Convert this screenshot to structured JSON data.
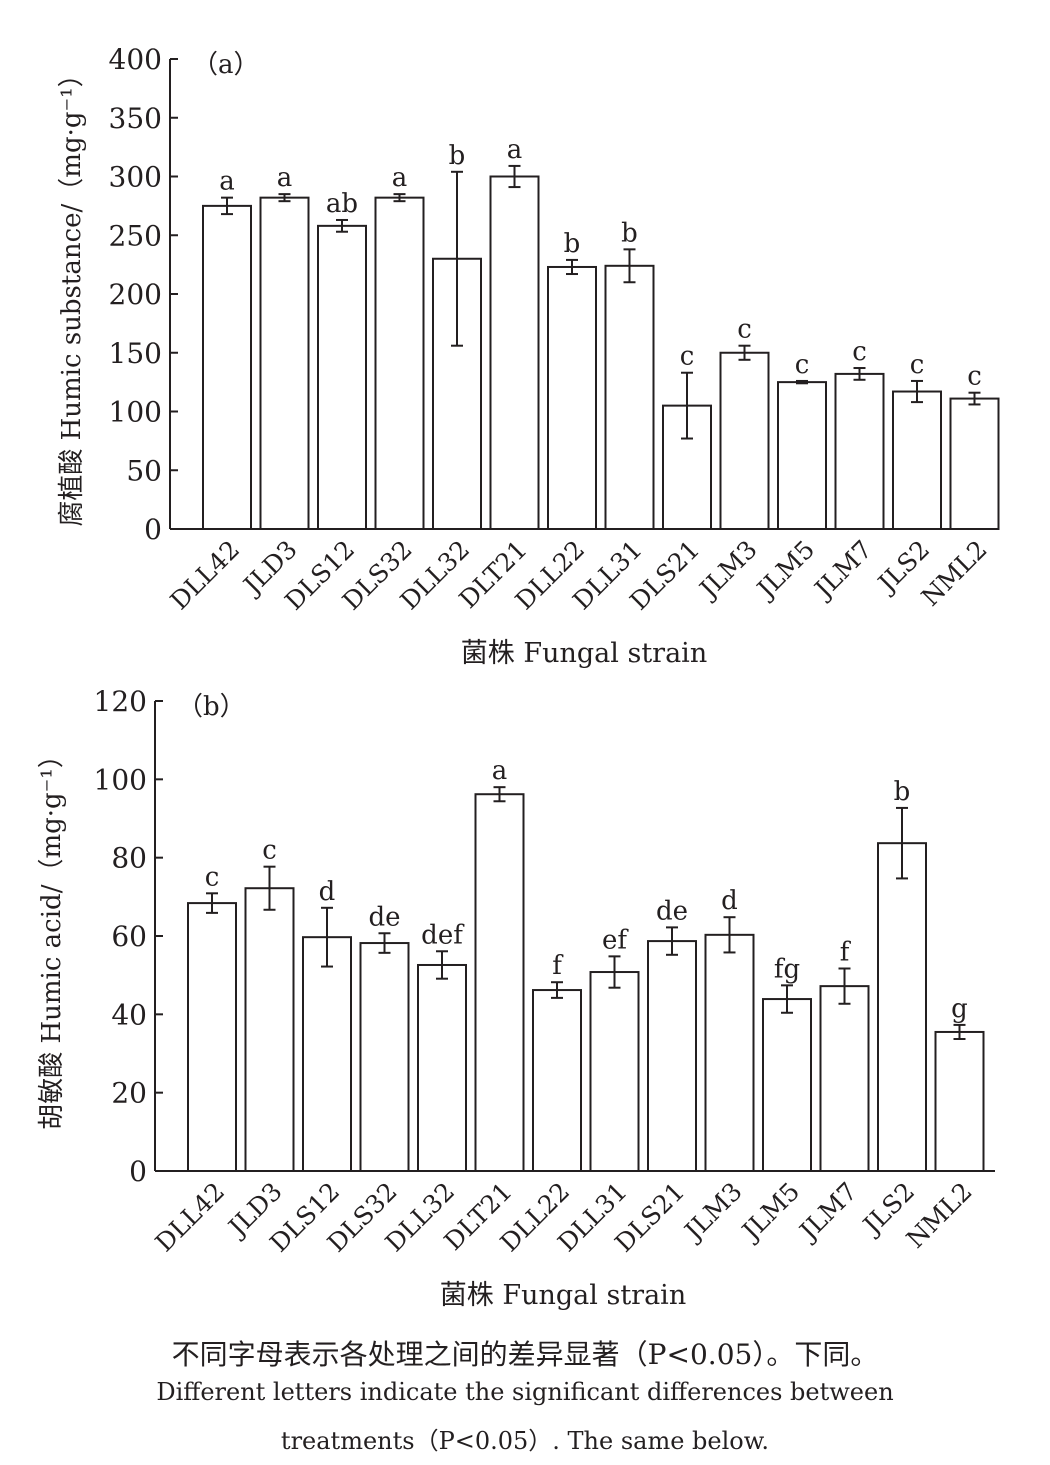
{
  "chart_data": [
    {
      "type": "bar",
      "panel_label": "（a）",
      "ylabel": "腐植酸 Humic substance/（mg·g⁻¹）",
      "xlabel": "菌株 Fungal strain",
      "ylim": [
        0,
        400
      ],
      "yticks": [
        0,
        50,
        100,
        150,
        200,
        250,
        300,
        350,
        400
      ],
      "categories": [
        "DLL42",
        "JLD3",
        "DLS12",
        "DLS32",
        "DLL32",
        "DLT21",
        "DLL22",
        "DLL31",
        "DLS21",
        "JLM3",
        "JLM5",
        "JLM7",
        "JLS2",
        "NML2"
      ],
      "values": [
        275,
        282,
        258,
        282,
        230,
        300,
        223,
        224,
        105,
        150,
        125,
        132,
        117,
        111
      ],
      "errors": [
        7,
        3,
        5,
        3,
        74,
        9,
        6,
        14,
        28,
        6,
        1,
        5,
        9,
        5
      ],
      "letters": [
        "a",
        "a",
        "ab",
        "a",
        "b",
        "a",
        "b",
        "b",
        "c",
        "c",
        "c",
        "c",
        "c",
        "c"
      ]
    },
    {
      "type": "bar",
      "panel_label": "（b）",
      "ylabel": "胡敏酸 Humic acid/（mg·g⁻¹）",
      "xlabel": "菌株 Fungal strain",
      "ylim": [
        0,
        120
      ],
      "yticks": [
        0,
        20,
        40,
        60,
        80,
        100,
        120
      ],
      "categories": [
        "DLL42",
        "JLD3",
        "DLS12",
        "DLS32",
        "DLL32",
        "DLT21",
        "DLL22",
        "DLL31",
        "DLS21",
        "JLM3",
        "JLM5",
        "JLM7",
        "JLS2",
        "NML2"
      ],
      "values": [
        68.4,
        72.2,
        59.7,
        58.2,
        52.6,
        96.2,
        46.2,
        50.8,
        58.7,
        60.3,
        43.9,
        47.2,
        83.7,
        35.5
      ],
      "errors": [
        2.5,
        5.5,
        7.5,
        2.5,
        3.5,
        1.8,
        2,
        4,
        3.5,
        4.5,
        3.5,
        4.5,
        9,
        1.8
      ],
      "letters": [
        "c",
        "c",
        "d",
        "de",
        "def",
        "a",
        "f",
        "ef",
        "de",
        "d",
        "fg",
        "f",
        "b",
        "g"
      ]
    }
  ],
  "caption": {
    "zh": "不同字母表示各处理之间的差异显著（P<0.05）。下同。",
    "en1": "Different letters indicate the significant differences between",
    "en2": "treatments（P<0.05）. The same below."
  }
}
